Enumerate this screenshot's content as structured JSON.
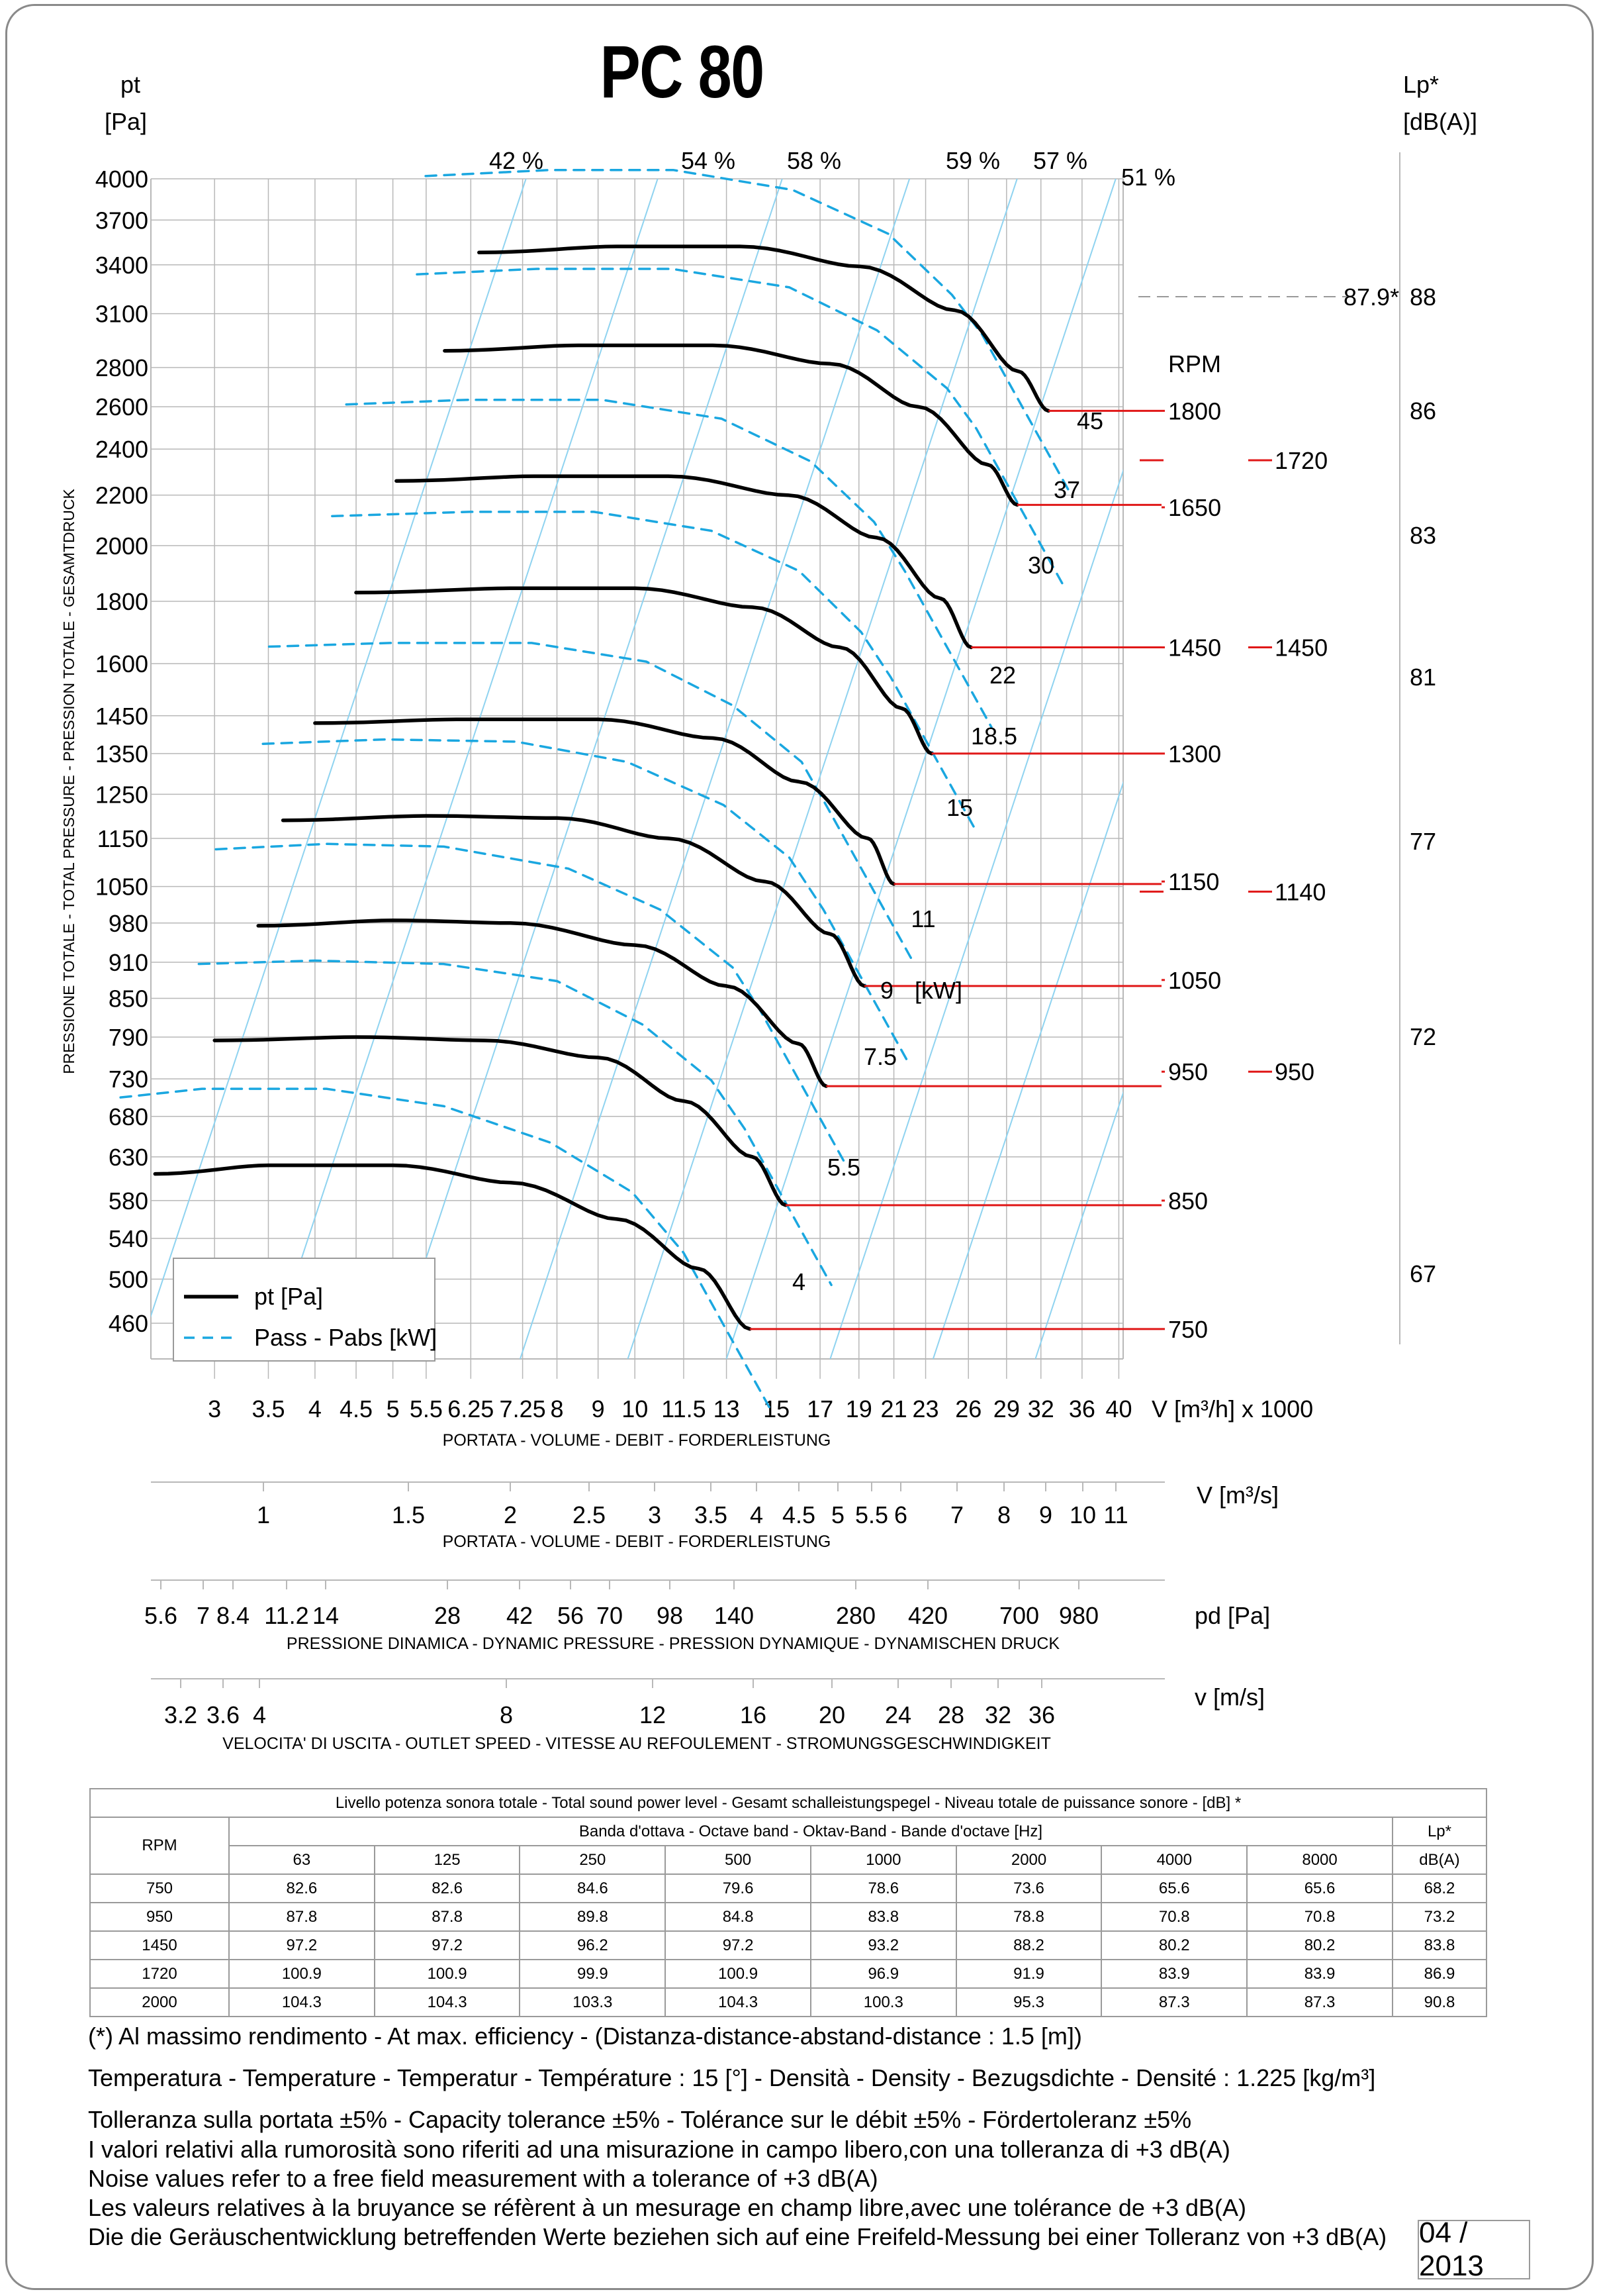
{
  "title": "PC 80",
  "chart_data": {
    "type": "line",
    "title": "PC 80",
    "left_axis": {
      "label_top": "pt",
      "label_unit": "[Pa]",
      "label_side": "PRESSIONE TOTALE - TOTAL PRESSURE - PRESSION TOTALE - GESAMTDRUCK",
      "ticks": [
        4000,
        3700,
        3400,
        3100,
        2800,
        2600,
        2400,
        2200,
        2000,
        1800,
        1600,
        1450,
        1350,
        1250,
        1150,
        1050,
        980,
        910,
        850,
        790,
        730,
        680,
        630,
        580,
        540,
        500,
        460
      ],
      "scale": "log",
      "range": [
        430,
        4000
      ]
    },
    "right_axis": {
      "label_top": "Lp*",
      "label_unit": "[dB(A)]",
      "ticks": [
        "88",
        "86",
        "83",
        "81",
        "77",
        "72",
        "67"
      ]
    },
    "x_axis": {
      "ticks": [
        "3",
        "3.5",
        "4",
        "4.5",
        "5",
        "5.5",
        "6.25",
        "7.25",
        "8",
        "9",
        "10",
        "11.5",
        "13",
        "15",
        "17",
        "19",
        "21",
        "23",
        "26",
        "29",
        "32",
        "36",
        "40"
      ],
      "unit": "V [m³/h]  x 1000",
      "label": "PORTATA - VOLUME - DEBIT - FORDERLEISTUNG",
      "scale": "log"
    },
    "secondary_axes": [
      {
        "ticks": [
          "1",
          "1.5",
          "2",
          "2.5",
          "3",
          "3.5",
          "4",
          "4.5",
          "5",
          "5.5",
          "6",
          "7",
          "8",
          "9",
          "10",
          "11"
        ],
        "unit": "V  [m³/s]",
        "label": "PORTATA - VOLUME - DEBIT - FORDERLEISTUNG"
      },
      {
        "ticks": [
          "5.6",
          "7",
          "8.4",
          "11.2",
          "14",
          "28",
          "42",
          "56",
          "70",
          "98",
          "140",
          "280",
          "420",
          "700",
          "980"
        ],
        "unit": "pd  [Pa]",
        "label": "PRESSIONE DINAMICA - DYNAMIC PRESSURE - PRESSION DYNAMIQUE - DYNAMISCHEN DRUCK"
      },
      {
        "ticks": [
          "3.2",
          "3.6",
          "4",
          "8",
          "12",
          "16",
          "20",
          "24",
          "28",
          "32",
          "36"
        ],
        "unit": "v  [m/s]",
        "label": "VELOCITA' DI USCITA - OUTLET SPEED - VITESSE AU REFOULEMENT - STROMUNGSGESCHWINDIGKEIT"
      }
    ],
    "efficiency_labels": [
      "42 %",
      "54 %",
      "58 %",
      "59 %",
      "57 %",
      "51 %"
    ],
    "rpm_header": "RPM",
    "rpm_labels": [
      "1800",
      "1650",
      "1450",
      "1300",
      "1150",
      "1050",
      "950",
      "850",
      "750"
    ],
    "rpm_secondary_labels": [
      "1720",
      "1450",
      "1140",
      "950"
    ],
    "rpm_pressure_levels": [
      2580,
      2150,
      1650,
      1350,
      1060,
      880,
      740,
      580,
      455
    ],
    "rpm_secondary_pressure_levels": [
      2350,
      1650,
      1040,
      740
    ],
    "power_labels": [
      "45",
      "37",
      "30",
      "22",
      "18.5",
      "15",
      "11",
      "9",
      "7.5",
      "5.5",
      "4"
    ],
    "power_unit": "[kW]",
    "max_efficiency_marker": "87.9*",
    "legend": {
      "pt": "pt [Pa]",
      "pabs": "Pass - Pabs [kW]"
    },
    "series": [
      {
        "rpm": "750",
        "x": [
          2.53,
          3.5,
          5.0,
          7.0,
          9.5,
          12.0,
          13.9
        ],
        "y": [
          610,
          620,
          620,
          600,
          560,
          510,
          455
        ]
      },
      {
        "rpm": "850",
        "x": [
          3.0,
          4.5,
          6.5,
          9.0,
          11.5,
          14.0,
          15.4
        ],
        "y": [
          785,
          790,
          785,
          760,
          700,
          630,
          575
        ]
      },
      {
        "rpm": "950",
        "x": [
          3.4,
          5.0,
          7.0,
          10.0,
          13.0,
          16.0,
          17.3
        ],
        "y": [
          975,
          985,
          980,
          940,
          870,
          780,
          720
        ]
      },
      {
        "rpm": "1050",
        "x": [
          3.65,
          5.5,
          8.0,
          11.0,
          14.5,
          17.5,
          19.3
        ],
        "y": [
          1190,
          1200,
          1195,
          1150,
          1060,
          960,
          870
        ]
      },
      {
        "rpm": "1150",
        "x": [
          4.0,
          6.0,
          9.0,
          12.5,
          16.0,
          19.5,
          21.0
        ],
        "y": [
          1430,
          1440,
          1440,
          1390,
          1280,
          1150,
          1055
        ]
      },
      {
        "rpm": "1300",
        "x": [
          4.5,
          7.0,
          10.0,
          14.0,
          18.0,
          21.5,
          23.4
        ],
        "y": [
          1830,
          1845,
          1845,
          1780,
          1650,
          1470,
          1350
        ]
      },
      {
        "rpm": "1450",
        "x": [
          5.05,
          7.5,
          11.0,
          15.5,
          20.0,
          24.0,
          26.2
        ],
        "y": [
          2260,
          2280,
          2280,
          2200,
          2030,
          1810,
          1650
        ]
      },
      {
        "rpm": "1650",
        "x": [
          5.8,
          8.5,
          12.5,
          17.5,
          22.5,
          27.5,
          29.9
        ],
        "y": [
          2890,
          2920,
          2920,
          2820,
          2600,
          2330,
          2160
        ]
      },
      {
        "rpm": "1800",
        "x": [
          6.4,
          9.5,
          13.5,
          19.0,
          25.0,
          30.0,
          32.7
        ],
        "y": [
          3480,
          3520,
          3520,
          3390,
          3120,
          2780,
          2580
        ]
      }
    ]
  },
  "table": {
    "caption": "Livello potenza sonora totale - Total sound power level - Gesamt schalleistungspegel - Niveau totale de puissance sonore - [dB]   *",
    "band_header": "Banda d'ottava - Octave band - Oktav-Band - Bande d'octave [Hz]",
    "rpm_header": "RPM",
    "lp_header": "Lp*",
    "lp_unit": "dB(A)",
    "bands": [
      "63",
      "125",
      "250",
      "500",
      "1000",
      "2000",
      "4000",
      "8000"
    ],
    "rows": [
      {
        "rpm": "750",
        "values": [
          "82.6",
          "82.6",
          "84.6",
          "79.6",
          "78.6",
          "73.6",
          "65.6",
          "65.6"
        ],
        "lp": "68.2"
      },
      {
        "rpm": "950",
        "values": [
          "87.8",
          "87.8",
          "89.8",
          "84.8",
          "83.8",
          "78.8",
          "70.8",
          "70.8"
        ],
        "lp": "73.2"
      },
      {
        "rpm": "1450",
        "values": [
          "97.2",
          "97.2",
          "96.2",
          "97.2",
          "93.2",
          "88.2",
          "80.2",
          "80.2"
        ],
        "lp": "83.8"
      },
      {
        "rpm": "1720",
        "values": [
          "100.9",
          "100.9",
          "99.9",
          "100.9",
          "96.9",
          "91.9",
          "83.9",
          "83.9"
        ],
        "lp": "86.9"
      },
      {
        "rpm": "2000",
        "values": [
          "104.3",
          "104.3",
          "103.3",
          "104.3",
          "100.3",
          "95.3",
          "87.3",
          "87.3"
        ],
        "lp": "90.8"
      }
    ]
  },
  "notes": {
    "max_efficiency": "(*) Al massimo rendimento - At max. efficiency - (Distanza-distance-abstand-distance : 1.5 [m])",
    "conditions": "Temperatura - Temperature - Temperatur - Température : 15 [°]  -  Densità - Density - Bezugsdichte - Densité : 1.225 [kg/m³]",
    "tolerance": "Tolleranza sulla portata  ±5% - Capacity tolerance ±5% - Tolérance sur le débit ±5% - Fördertoleranz ±5%",
    "noise_it": "I valori relativi alla rumorosità sono riferiti ad una misurazione in campo libero,con una tolleranza di +3 dB(A)",
    "noise_en": "Noise values refer to a free field measurement with a tolerance of +3 dB(A)",
    "noise_fr": "Les valeurs relatives à la bruyance se réfèrent à un mesurage en champ libre,avec une tolérance de +3 dB(A)",
    "noise_de": "Die die Geräuschentwicklung betreffenden Werte beziehen sich auf eine Freifeld-Messung bei einer Tolleranz von +3 dB(A)"
  },
  "date": "04 / 2013",
  "colors": {
    "pt_curve": "#000000",
    "power_curve": "#1aa7e0",
    "efficiency_line": "#8fd3f0",
    "rpm_line": "#e01818",
    "grid": "#b8b8b8"
  }
}
